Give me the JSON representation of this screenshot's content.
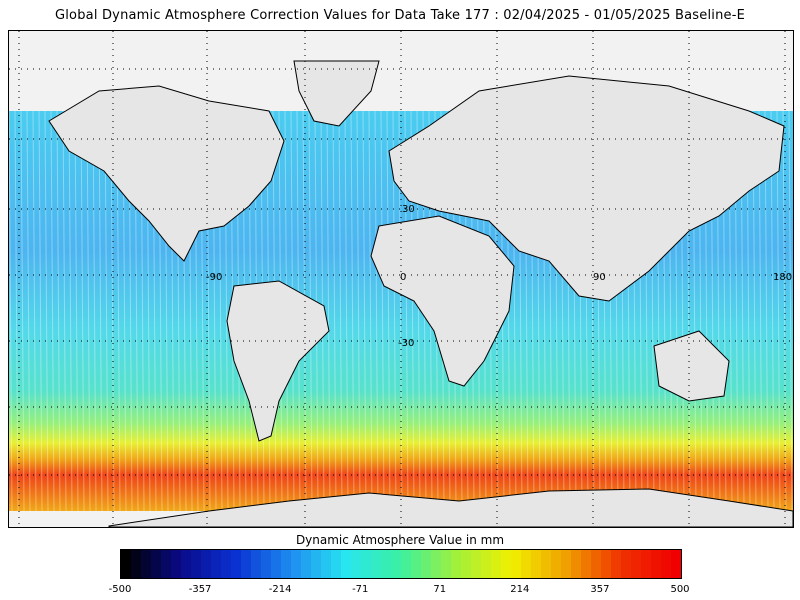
{
  "title": "Global Dynamic Atmosphere Correction Values for Data Take 177 : 02/04/2025 - 01/05/2025 Baseline-E",
  "map": {
    "grid_labels": [
      {
        "key": "lat30",
        "text": "30"
      },
      {
        "key": "lon-90",
        "text": "-90"
      },
      {
        "key": "lon0",
        "text": "0"
      },
      {
        "key": "lon90",
        "text": "90"
      },
      {
        "key": "lon180",
        "text": "180"
      },
      {
        "key": "lat-30",
        "text": "-30"
      }
    ],
    "colors": {
      "land": "#e6e6e6",
      "coast": "#000000",
      "background": "#f2f2f2"
    }
  },
  "legend": {
    "title": "Dynamic Atmosphere Value in mm",
    "ticks": [
      "-500",
      "-357",
      "-214",
      "-71",
      "71",
      "214",
      "357",
      "500"
    ],
    "range": [
      -500,
      500
    ],
    "colormap": [
      "#000000",
      "#0a0a8a",
      "#0a32d2",
      "#1e8cf0",
      "#28e6f0",
      "#3cf0a0",
      "#a0f03c",
      "#f0f000",
      "#f0a000",
      "#f03200",
      "#f00000"
    ]
  }
}
